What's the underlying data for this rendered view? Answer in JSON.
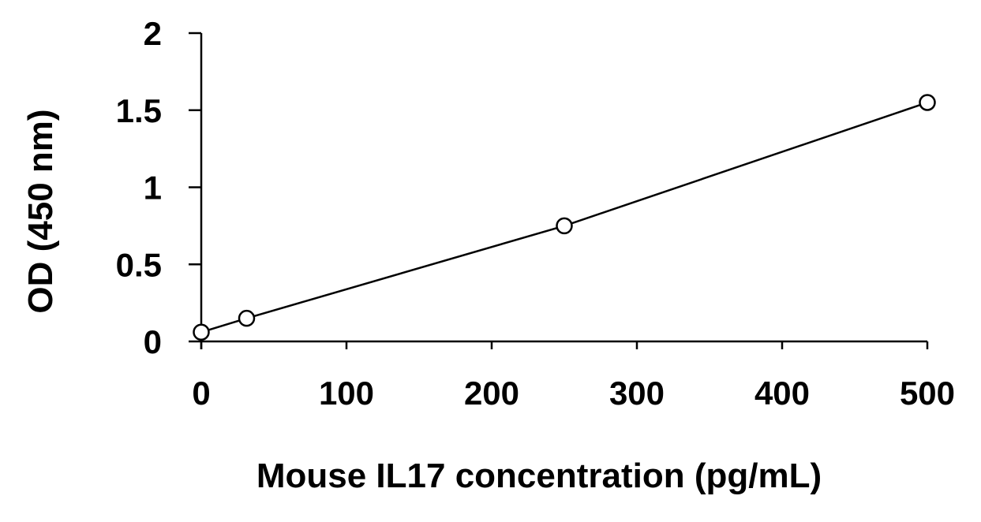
{
  "chart_data": {
    "type": "line",
    "title": "",
    "xlabel": "Mouse IL17 concentration (pg/mL)",
    "ylabel": "OD (450 nm)",
    "xlim": [
      0,
      500
    ],
    "ylim": [
      0,
      2
    ],
    "xticks": [
      0,
      100,
      200,
      300,
      400,
      500
    ],
    "yticks": [
      0,
      0.5,
      1,
      1.5,
      2
    ],
    "xtick_labels": [
      "0",
      "100",
      "200",
      "300",
      "400",
      "500"
    ],
    "ytick_labels": [
      "0",
      "0.5",
      "1",
      "1.5",
      "2"
    ],
    "grid": false,
    "legend": "none",
    "series": [
      {
        "x": [
          0,
          31.25,
          250,
          500
        ],
        "y": [
          0.06,
          0.15,
          0.75,
          1.55
        ],
        "marker": "open-circle",
        "color": "#000000"
      }
    ]
  }
}
